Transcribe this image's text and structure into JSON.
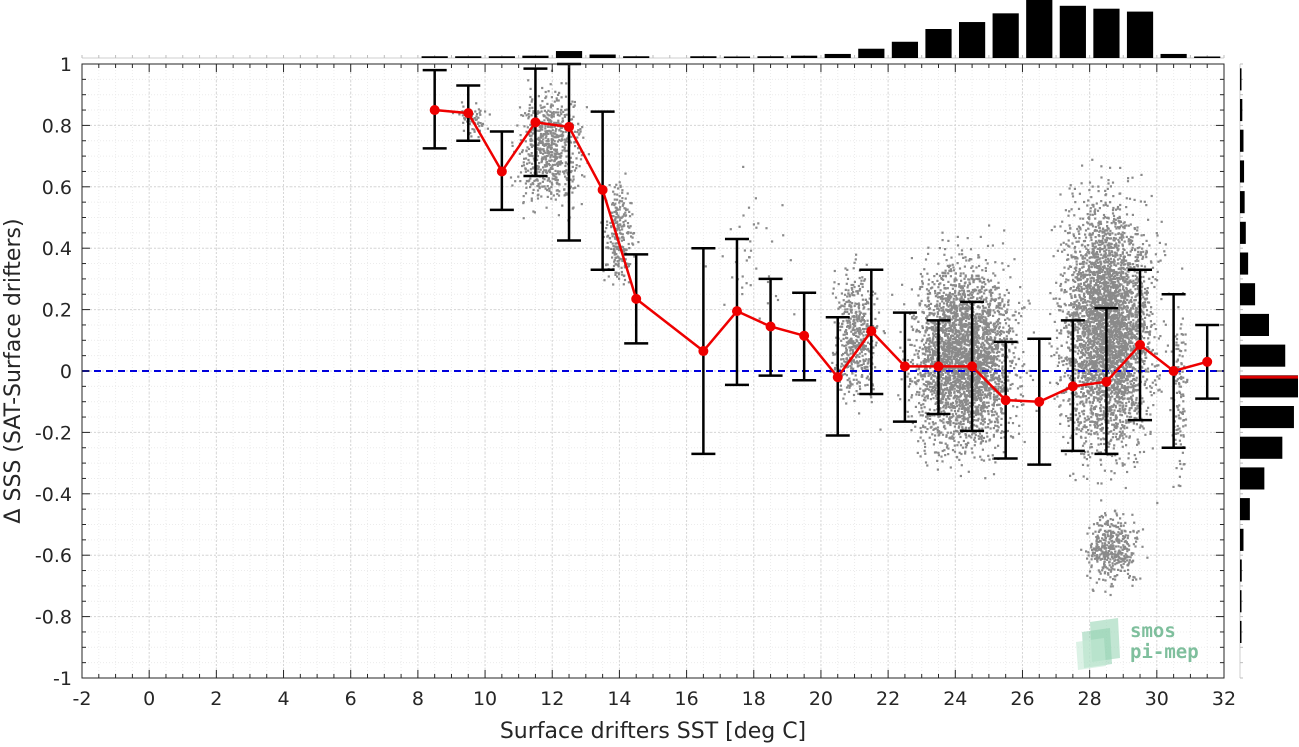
{
  "chart_data": {
    "type": "scatter",
    "xlabel": "Surface drifters SST [deg C]",
    "ylabel": "Δ SSS (SAT-Surface drifters)",
    "xlim": [
      -2,
      32
    ],
    "ylim": [
      -1,
      1
    ],
    "xticks": [
      "-2",
      "0",
      "2",
      "4",
      "6",
      "8",
      "10",
      "12",
      "14",
      "16",
      "18",
      "20",
      "22",
      "24",
      "26",
      "28",
      "30",
      "32"
    ],
    "yticks": [
      "1",
      "0.8",
      "0.6",
      "0.4",
      "0.2",
      "0",
      "-0.2",
      "-0.4",
      "-0.6",
      "-0.8",
      "-1"
    ],
    "grid": true,
    "reference_line": {
      "y": 0,
      "color": "#0000dd",
      "style": "dashed"
    },
    "binned_mean": {
      "color": "#ee0000",
      "x": [
        8.5,
        9.5,
        10.5,
        11.5,
        12.5,
        13.5,
        14.5,
        16.5,
        17.5,
        18.5,
        19.5,
        20.5,
        21.5,
        22.5,
        23.5,
        24.5,
        25.5,
        26.5,
        27.5,
        28.5,
        29.5,
        30.5,
        31.5
      ],
      "y": [
        0.85,
        0.84,
        0.65,
        0.81,
        0.795,
        0.59,
        0.235,
        0.065,
        0.195,
        0.145,
        0.115,
        -0.02,
        0.13,
        0.015,
        0.015,
        0.015,
        -0.095,
        -0.1,
        -0.05,
        -0.035,
        0.085,
        0.0,
        0.03
      ],
      "y_low": [
        0.725,
        0.75,
        0.525,
        0.635,
        0.425,
        0.33,
        0.09,
        -0.27,
        -0.045,
        -0.015,
        -0.03,
        -0.21,
        -0.075,
        -0.165,
        -0.14,
        -0.195,
        -0.285,
        -0.305,
        -0.26,
        -0.27,
        -0.16,
        -0.25,
        -0.09
      ],
      "y_high": [
        0.98,
        0.93,
        0.78,
        0.985,
        1.0,
        0.845,
        0.38,
        0.4,
        0.43,
        0.3,
        0.255,
        0.175,
        0.33,
        0.19,
        0.165,
        0.225,
        0.095,
        0.105,
        0.165,
        0.205,
        0.33,
        0.25,
        0.15
      ]
    },
    "scatter_clusters": {
      "color": "#8a8a8a",
      "clusters": [
        {
          "x": [
            8.9,
            10.3
          ],
          "y": [
            0.74,
            0.9
          ],
          "n": 60
        },
        {
          "x": [
            10.5,
            13.3
          ],
          "y": [
            0.45,
            1.0
          ],
          "n": 700
        },
        {
          "x": [
            13.3,
            14.6
          ],
          "y": [
            0.2,
            0.7
          ],
          "n": 260
        },
        {
          "x": [
            16.3,
            19.8
          ],
          "y": [
            0.05,
            0.7
          ],
          "n": 40
        },
        {
          "x": [
            20.0,
            22.0
          ],
          "y": [
            -0.2,
            0.45
          ],
          "n": 500
        },
        {
          "x": [
            22.0,
            26.5
          ],
          "y": [
            -0.4,
            0.5
          ],
          "n": 3200
        },
        {
          "x": [
            26.5,
            30.5
          ],
          "y": [
            -0.45,
            0.75
          ],
          "n": 3800
        },
        {
          "x": [
            27.5,
            29.8
          ],
          "y": [
            -0.75,
            -0.4
          ],
          "n": 400
        },
        {
          "x": [
            30.3,
            31.0
          ],
          "y": [
            -0.55,
            0.4
          ],
          "n": 120
        }
      ]
    },
    "top_histogram": {
      "x": [
        -1.5,
        -0.5,
        0.5,
        1.5,
        2.5,
        3.5,
        4.5,
        5.5,
        6.5,
        7.5,
        8.5,
        9.5,
        10.5,
        11.5,
        12.5,
        13.5,
        14.5,
        15.5,
        16.5,
        17.5,
        18.5,
        19.5,
        20.5,
        21.5,
        22.5,
        23.5,
        24.5,
        25.5,
        26.5,
        27.5,
        28.5,
        29.5,
        30.5,
        31.5
      ],
      "values": [
        0,
        0,
        0,
        0,
        0,
        0,
        0,
        0,
        0,
        0,
        0.03,
        0.03,
        0.03,
        0.04,
        0.12,
        0.06,
        0.03,
        0,
        0.03,
        0.02,
        0.03,
        0.04,
        0.07,
        0.16,
        0.28,
        0.5,
        0.62,
        0.77,
        1.0,
        0.9,
        0.85,
        0.8,
        0.07,
        0.02
      ]
    },
    "right_histogram": {
      "y": [
        0.95,
        0.85,
        0.75,
        0.65,
        0.55,
        0.45,
        0.35,
        0.25,
        0.15,
        0.05,
        -0.05,
        -0.15,
        -0.25,
        -0.35,
        -0.45,
        -0.55,
        -0.65,
        -0.75,
        -0.85,
        -0.95
      ],
      "values": [
        0.02,
        0.04,
        0.06,
        0.07,
        0.08,
        0.1,
        0.14,
        0.26,
        0.5,
        0.78,
        1.0,
        0.93,
        0.73,
        0.42,
        0.17,
        0.06,
        0.03,
        0.02,
        0.01,
        0.0
      ],
      "median_marker": -0.02
    },
    "watermark": {
      "line1": "smos",
      "line2": "pi-mep"
    }
  }
}
